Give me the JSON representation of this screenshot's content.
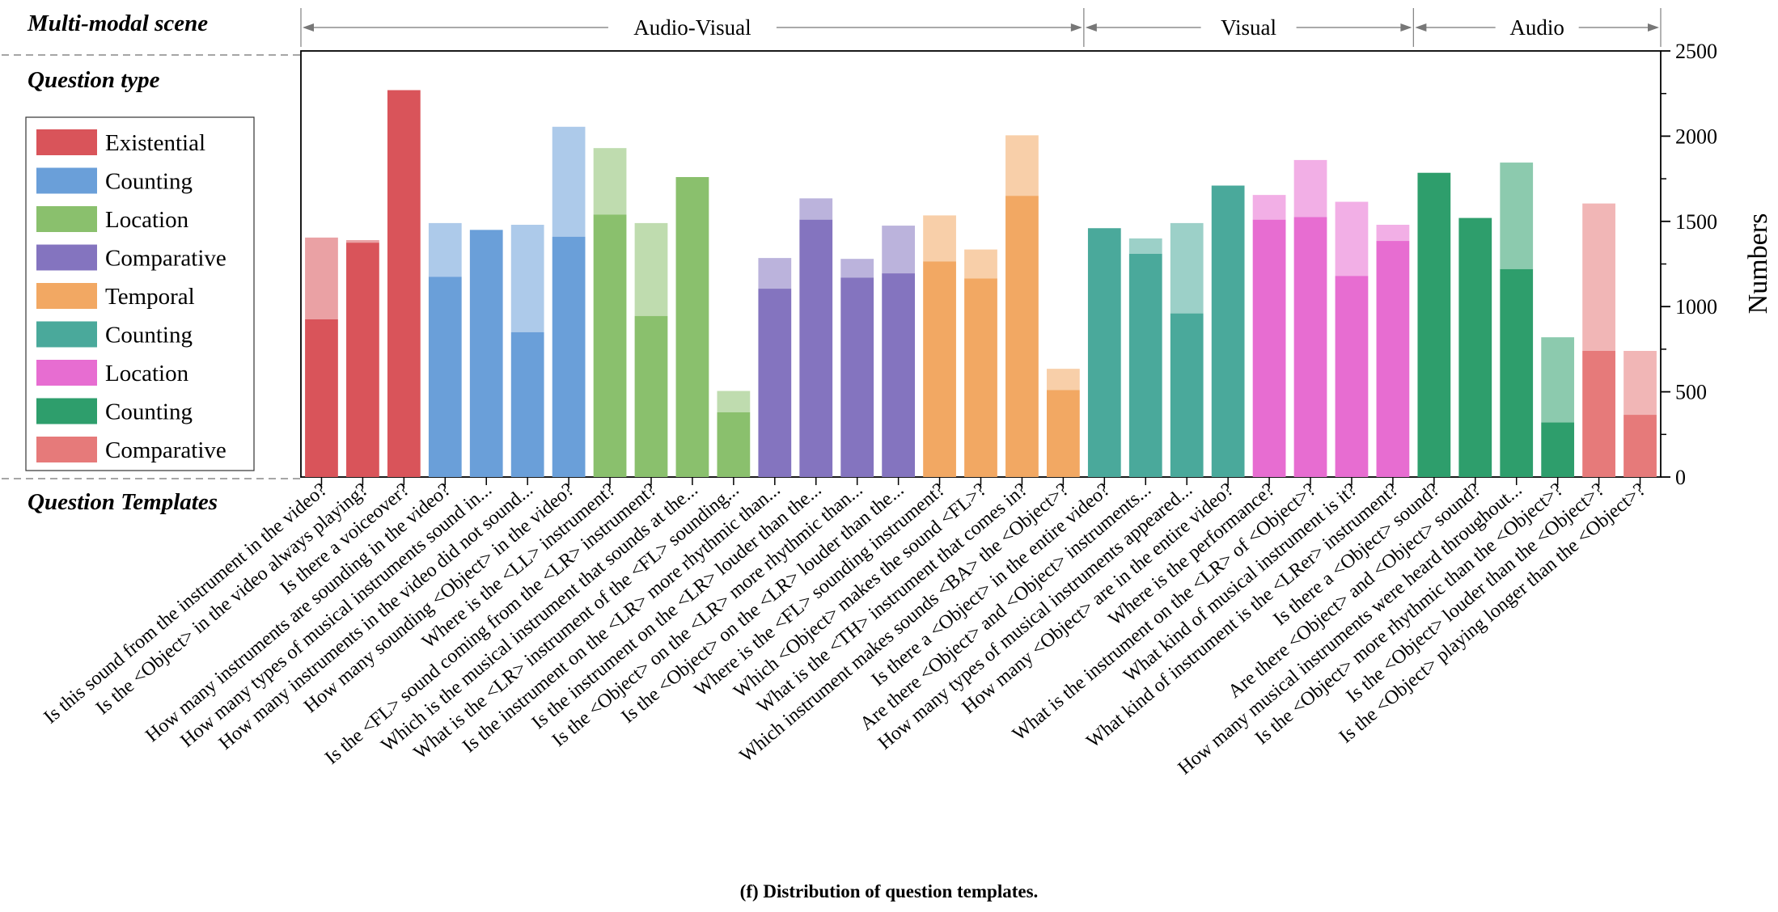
{
  "labels": {
    "scene_header": "Multi-modal scene",
    "qtype_header": "Question type",
    "templates_header": "Question Templates",
    "caption": "(f) Distribution of question templates."
  },
  "scenes": [
    {
      "label": "Audio-Visual",
      "from": 0,
      "to": 19
    },
    {
      "label": "Visual",
      "from": 19,
      "to": 27
    },
    {
      "label": "Audio",
      "from": 27,
      "to": 33
    }
  ],
  "legend": [
    {
      "label": "Existential",
      "color": "#d9545a"
    },
    {
      "label": "Counting",
      "color": "#6a9fd9"
    },
    {
      "label": "Location",
      "color": "#8ac06d"
    },
    {
      "label": "Comparative",
      "color": "#8474bf"
    },
    {
      "label": "Temporal",
      "color": "#f2a863"
    },
    {
      "label": "Counting",
      "color": "#4aa99b"
    },
    {
      "label": "Location",
      "color": "#e76dd1"
    },
    {
      "label": "Counting",
      "color": "#2e9e6c"
    },
    {
      "label": "Comparative",
      "color": "#e67a7a"
    }
  ],
  "chart_data": {
    "type": "bar",
    "title": "",
    "xlabel": "",
    "ylabel": "Numbers",
    "ylim": [
      0,
      2500
    ],
    "yticks": [
      0,
      500,
      1000,
      1500,
      2000,
      2500
    ],
    "y_axis_position": "right",
    "stacked": true,
    "categories": [
      "Is this sound from the instrument in the video?",
      "Is the <Object> in the video always playing?",
      "Is there a voiceover?",
      "How many instruments are sounding in the video?",
      "How many types of musical instruments sound in...",
      "How many instruments in the video did not sound...",
      "How many sounding <Object> in the video?",
      "Where is the <LL> instrument?",
      "Is the <FL> sound coming from the <LR> instrument?",
      "Which is the musical instrument that sounds at the...",
      "What is the <LR> instrument of the <FL> sounding...",
      "Is the instrument on the <LR> more rhythmic than...",
      "Is the instrument on the <LR> louder than the...",
      "Is the <Object> on the <LR> more rhythmic than...",
      "Is the <Object> on the <LR> louder than the...",
      "Where is the <FL> sounding instrument?",
      "Which <Object> makes the sound <FL>?",
      "What is the <TH> instrument that comes in?",
      "Which instrument makes sounds <BA> the <Object>?",
      "Is there a <Object> in the entire video?",
      "Are there <Object> and <Object> instruments...",
      "How many types of musical instruments appeared...",
      "How many <Object> are in the entire video?",
      "Where is the performance?",
      "What is the instrument on the <LR> of <Object>?",
      "What kind of musical instrument is it?",
      "What kind of instrument is the <LRer> instrument?",
      "Is there a <Object> sound?",
      "Are there <Object> and <Object> sound?",
      "How many musical instruments were heard throughout...",
      "Is the <Object> more rhythmic than the <Object>?",
      "Is the <Object> louder than the <Object>?",
      "Is the <Object> playing longer than the <Object>?"
    ],
    "group": [
      0,
      0,
      0,
      1,
      1,
      1,
      1,
      2,
      2,
      2,
      2,
      3,
      3,
      3,
      3,
      4,
      4,
      4,
      4,
      5,
      5,
      5,
      5,
      6,
      6,
      6,
      6,
      7,
      7,
      7,
      7,
      8,
      8
    ],
    "series": [
      {
        "name": "",
        "values": [
          925,
          1375,
          2270,
          1175,
          1450,
          850,
          1410,
          1540,
          945,
          1760,
          380,
          1105,
          1510,
          1170,
          1195,
          1265,
          1165,
          1650,
          510,
          1460,
          1310,
          960,
          1710,
          1510,
          1525,
          1180,
          1385,
          1785,
          1520,
          1220,
          320,
          740,
          365
        ]
      },
      {
        "name": "",
        "values": [
          480,
          15,
          0,
          315,
          0,
          630,
          645,
          390,
          545,
          0,
          125,
          180,
          125,
          110,
          280,
          270,
          170,
          355,
          125,
          0,
          90,
          530,
          0,
          145,
          335,
          435,
          95,
          0,
          0,
          625,
          500,
          865,
          375
        ]
      }
    ]
  }
}
